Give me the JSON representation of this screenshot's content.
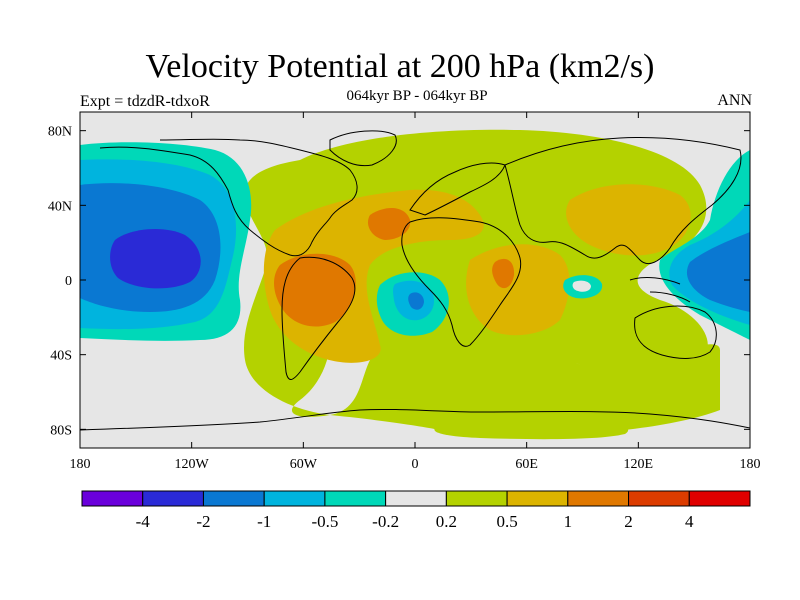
{
  "map": {
    "title": "Velocity Potential at 200 hPa (km2/s)",
    "subtitle": "064kyr BP - 064kyr BP",
    "left_label": "Expt = tdzdR-tdxoR",
    "right_label": "ANN",
    "lon_ticks": [
      "180",
      "120W",
      "60W",
      "0",
      "60E",
      "120E",
      "180"
    ],
    "lat_ticks": [
      "80N",
      "40N",
      "0",
      "40S",
      "80S"
    ],
    "lon_values": [
      -180,
      -120,
      -60,
      0,
      60,
      120,
      180
    ],
    "lat_values": [
      80,
      40,
      0,
      -40,
      -80
    ],
    "lon_range": [
      -180,
      180
    ],
    "lat_range": [
      -90,
      90
    ],
    "background_color": "#e6e6e6"
  },
  "colorbar": {
    "labels": [
      "-4",
      "-2",
      "-1",
      "-0.5",
      "-0.2",
      "0.2",
      "0.5",
      "1",
      "2",
      "4"
    ],
    "colors": [
      "#6a00db",
      "#2a2ad6",
      "#0a78d2",
      "#00b4de",
      "#00d8b8",
      "#e6e6e6",
      "#b4d200",
      "#dcb400",
      "#e07800",
      "#dc3c00",
      "#e00000"
    ]
  }
}
